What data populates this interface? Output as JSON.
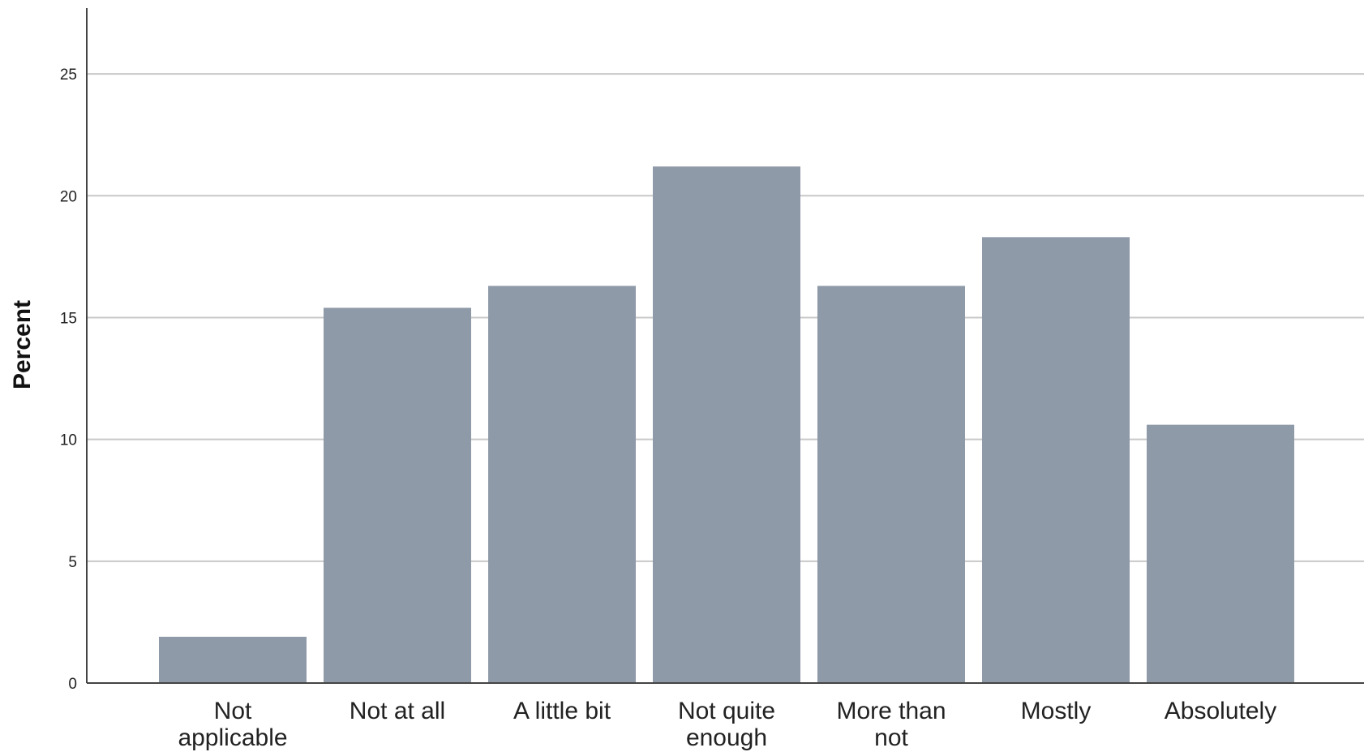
{
  "chart_data": {
    "type": "bar",
    "categories": [
      [
        "Not",
        "applicable"
      ],
      [
        "Not at all"
      ],
      [
        "A little bit"
      ],
      [
        "Not quite",
        "enough"
      ],
      [
        "More than",
        "not"
      ],
      [
        "Mostly"
      ],
      [
        "Absolutely"
      ]
    ],
    "values": [
      1.9,
      15.4,
      16.3,
      21.2,
      16.3,
      18.3,
      10.6
    ],
    "title": "",
    "xlabel": "",
    "ylabel": "Percent",
    "ylim": [
      0,
      27.7
    ],
    "yticks": [
      "0",
      "5",
      "10",
      "15",
      "20",
      "25"
    ],
    "grid": true,
    "bar_color": "#8f9aa8"
  }
}
